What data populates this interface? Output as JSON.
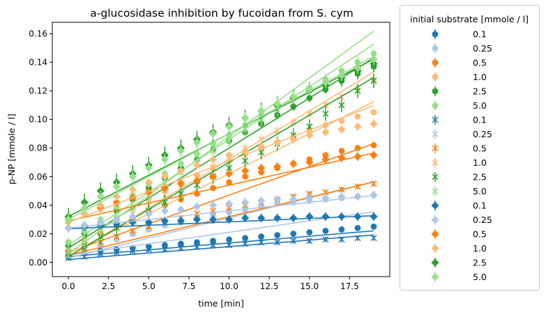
{
  "chart_data": {
    "type": "scatter",
    "title": "a-glucosidase inhibition by fucoidan from S. cym",
    "xlabel": "time [min]",
    "ylabel": "p-NP [mmole / l]",
    "xlim": [
      -1,
      20
    ],
    "ylim": [
      -0.01,
      0.168
    ],
    "xticks": [
      0.0,
      2.5,
      5.0,
      7.5,
      10.0,
      12.5,
      15.0,
      17.5
    ],
    "xtick_labels": [
      "0.0",
      "2.5",
      "5.0",
      "7.5",
      "10.0",
      "12.5",
      "15.0",
      "17.5"
    ],
    "yticks": [
      0.0,
      0.02,
      0.04,
      0.06,
      0.08,
      0.1,
      0.12,
      0.14,
      0.16
    ],
    "ytick_labels": [
      "0.00",
      "0.02",
      "0.04",
      "0.06",
      "0.08",
      "0.10",
      "0.12",
      "0.14",
      "0.16"
    ],
    "grid": false,
    "legend": {
      "title": "initial substrate [mmole / l]",
      "placement": "outside-right"
    },
    "x": [
      0,
      1,
      2,
      3,
      4,
      5,
      6,
      7,
      8,
      9,
      10,
      11,
      12,
      13,
      14,
      15,
      16,
      17,
      18,
      19
    ],
    "series": [
      {
        "name": "0.1",
        "marker": "circle",
        "color": "#1f77b4",
        "fit": [
          0.004,
          0.00095
        ],
        "yerr": 0.0015,
        "values": [
          0.004,
          0.007,
          0.008,
          0.009,
          0.01,
          0.011,
          0.012,
          0.013,
          0.014,
          0.015,
          0.016,
          0.017,
          0.018,
          0.019,
          0.02,
          0.021,
          0.022,
          0.023,
          0.024,
          0.025
        ]
      },
      {
        "name": "0.25",
        "marker": "circle",
        "color": "#aec7e8",
        "fit": [
          0.005,
          0.0016
        ],
        "yerr": 0.002,
        "values": [
          0.005,
          0.008,
          0.012,
          0.016,
          0.02,
          0.023,
          0.026,
          0.028,
          0.031,
          0.033,
          0.035,
          0.037,
          0.039,
          0.041,
          0.042,
          0.043,
          0.044,
          0.045,
          0.046,
          0.047
        ]
      },
      {
        "name": "0.5",
        "marker": "circle",
        "color": "#ff7f0e",
        "fit": [
          0.007,
          0.004
        ],
        "yerr": 0.002,
        "values": [
          0.008,
          0.014,
          0.02,
          0.025,
          0.03,
          0.035,
          0.04,
          0.044,
          0.048,
          0.052,
          0.056,
          0.06,
          0.063,
          0.066,
          0.069,
          0.072,
          0.075,
          0.078,
          0.08,
          0.082
        ]
      },
      {
        "name": "1.0",
        "marker": "circle",
        "color": "#ffbb78",
        "fit": [
          0.006,
          0.0056
        ],
        "yerr": 0.002,
        "values": [
          0.008,
          0.016,
          0.024,
          0.031,
          0.038,
          0.044,
          0.05,
          0.056,
          0.061,
          0.066,
          0.071,
          0.076,
          0.08,
          0.084,
          0.088,
          0.092,
          0.096,
          0.099,
          0.102,
          0.105
        ]
      },
      {
        "name": "2.5",
        "marker": "circle",
        "color": "#2ca02c",
        "fit": [
          0.01,
          0.007
        ],
        "yerr": 0.003,
        "values": [
          0.012,
          0.02,
          0.028,
          0.036,
          0.044,
          0.052,
          0.059,
          0.066,
          0.072,
          0.079,
          0.085,
          0.091,
          0.097,
          0.103,
          0.109,
          0.115,
          0.121,
          0.127,
          0.132,
          0.137
        ]
      },
      {
        "name": "5.0",
        "marker": "circle",
        "color": "#98df8a",
        "fit": [
          0.012,
          0.0074
        ],
        "yerr": 0.003,
        "values": [
          0.014,
          0.022,
          0.03,
          0.039,
          0.047,
          0.055,
          0.062,
          0.069,
          0.076,
          0.083,
          0.089,
          0.096,
          0.103,
          0.109,
          0.115,
          0.122,
          0.128,
          0.134,
          0.14,
          0.146
        ]
      },
      {
        "name": "0.1",
        "marker": "x",
        "color": "#1f77b4",
        "fit": [
          0.002,
          0.0009
        ],
        "yerr": 0.002,
        "values": [
          0.003,
          0.004,
          0.006,
          0.007,
          0.008,
          0.009,
          0.009,
          0.01,
          0.011,
          0.012,
          0.012,
          0.013,
          0.014,
          0.014,
          0.015,
          0.015,
          0.016,
          0.016,
          0.017,
          0.017
        ]
      },
      {
        "name": "0.25",
        "marker": "x",
        "color": "#aec7e8",
        "fit": [
          0.003,
          0.0028
        ],
        "yerr": 0.002,
        "values": [
          0.005,
          0.009,
          0.013,
          0.017,
          0.02,
          0.023,
          0.026,
          0.029,
          0.032,
          0.034,
          0.036,
          0.039,
          0.041,
          0.043,
          0.045,
          0.047,
          0.049,
          0.051,
          0.053,
          0.055
        ]
      },
      {
        "name": "0.5",
        "marker": "x",
        "color": "#ff7f0e",
        "fit": [
          0.005,
          0.0027
        ],
        "yerr": 0.002,
        "values": [
          0.007,
          0.01,
          0.014,
          0.018,
          0.022,
          0.025,
          0.028,
          0.031,
          0.034,
          0.036,
          0.038,
          0.04,
          0.042,
          0.044,
          0.046,
          0.048,
          0.049,
          0.051,
          0.053,
          0.055
        ]
      },
      {
        "name": "1.0",
        "marker": "x",
        "color": "#ffbb78",
        "fit": [
          0.004,
          0.0068
        ],
        "yerr": 0.003,
        "values": [
          0.006,
          0.013,
          0.02,
          0.027,
          0.034,
          0.04,
          0.047,
          0.054,
          0.06,
          0.067,
          0.073,
          0.08,
          0.086,
          0.092,
          0.098,
          0.104,
          0.11,
          0.116,
          0.122,
          0.128
        ]
      },
      {
        "name": "2.5",
        "marker": "x",
        "color": "#2ca02c",
        "fit": [
          0.004,
          0.0066
        ],
        "yerr": 0.005,
        "values": [
          0.006,
          0.012,
          0.018,
          0.024,
          0.03,
          0.036,
          0.042,
          0.048,
          0.054,
          0.06,
          0.066,
          0.071,
          0.077,
          0.083,
          0.089,
          0.095,
          0.104,
          0.11,
          0.12,
          0.127
        ]
      },
      {
        "name": "5.0",
        "marker": "x",
        "color": "#98df8a",
        "fit": [
          0.006,
          0.0082
        ],
        "yerr": 0.005,
        "values": [
          0.008,
          0.015,
          0.023,
          0.031,
          0.039,
          0.047,
          0.055,
          0.063,
          0.07,
          0.078,
          0.085,
          0.093,
          0.1,
          0.107,
          0.114,
          0.121,
          0.127,
          0.133,
          0.139,
          0.14
        ]
      },
      {
        "name": "0.1",
        "marker": "diamond",
        "color": "#1f77b4",
        "fit": [
          0.0235,
          0.00048
        ],
        "yerr": 0.003,
        "values": [
          0.024,
          0.025,
          0.026,
          0.027,
          0.028,
          0.028,
          0.029,
          0.029,
          0.03,
          0.03,
          0.03,
          0.031,
          0.031,
          0.031,
          0.031,
          0.032,
          0.032,
          0.032,
          0.032,
          0.032
        ]
      },
      {
        "name": "0.25",
        "marker": "diamond",
        "color": "#aec7e8",
        "fit": [
          0.024,
          0.0012
        ],
        "yerr": 0.003,
        "values": [
          0.024,
          0.026,
          0.028,
          0.03,
          0.032,
          0.034,
          0.036,
          0.037,
          0.039,
          0.04,
          0.041,
          0.042,
          0.043,
          0.044,
          0.044,
          0.045,
          0.045,
          0.046,
          0.046,
          0.047
        ]
      },
      {
        "name": "0.5",
        "marker": "diamond",
        "color": "#ff7f0e",
        "fit": [
          0.029,
          0.0025
        ],
        "yerr": 0.003,
        "values": [
          0.03,
          0.034,
          0.038,
          0.042,
          0.045,
          0.049,
          0.052,
          0.055,
          0.057,
          0.06,
          0.062,
          0.064,
          0.066,
          0.067,
          0.069,
          0.07,
          0.072,
          0.073,
          0.074,
          0.075
        ]
      },
      {
        "name": "1.0",
        "marker": "diamond",
        "color": "#ffbb78",
        "fit": [
          0.028,
          0.0043
        ],
        "yerr": 0.003,
        "values": [
          0.028,
          0.034,
          0.04,
          0.046,
          0.051,
          0.056,
          0.06,
          0.064,
          0.068,
          0.072,
          0.075,
          0.078,
          0.081,
          0.084,
          0.086,
          0.089,
          0.091,
          0.093,
          0.095,
          0.097
        ]
      },
      {
        "name": "2.5",
        "marker": "diamond",
        "color": "#2ca02c",
        "fit": [
          0.032,
          0.0058
        ],
        "yerr": 0.006,
        "values": [
          0.032,
          0.042,
          0.05,
          0.056,
          0.062,
          0.068,
          0.075,
          0.08,
          0.086,
          0.091,
          0.096,
          0.101,
          0.106,
          0.11,
          0.115,
          0.12,
          0.124,
          0.129,
          0.134,
          0.139
        ]
      },
      {
        "name": "5.0",
        "marker": "diamond",
        "color": "#98df8a",
        "fit": [
          0.03,
          0.006
        ],
        "yerr": 0.004,
        "values": [
          0.03,
          0.038,
          0.046,
          0.053,
          0.06,
          0.066,
          0.072,
          0.078,
          0.084,
          0.09,
          0.095,
          0.101,
          0.106,
          0.111,
          0.116,
          0.121,
          0.126,
          0.131,
          0.136,
          0.142
        ]
      }
    ]
  }
}
